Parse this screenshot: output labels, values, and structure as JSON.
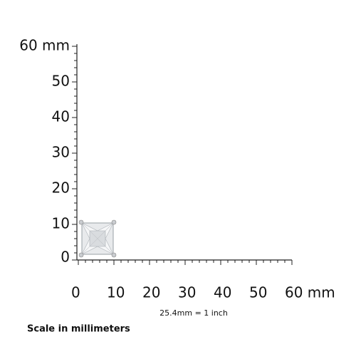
{
  "y_axis": {
    "labels": [
      "60 mm",
      "50",
      "40",
      "30",
      "20",
      "10",
      "0"
    ]
  },
  "x_axis": {
    "labels": [
      "0",
      "10",
      "20",
      "30",
      "40",
      "50",
      "60 mm"
    ]
  },
  "note": "25.4mm = 1 inch",
  "caption": "Scale in millimeters"
}
